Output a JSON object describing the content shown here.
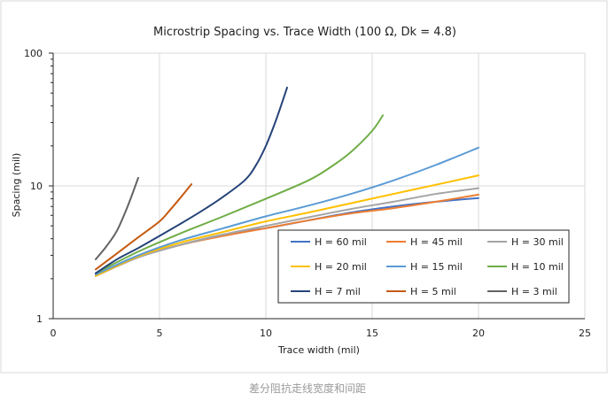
{
  "caption": "差分阻抗走线宽度和间距",
  "chart_data": {
    "type": "line",
    "title": "Microstrip Spacing vs. Trace Width (100 Ω, Dk = 4.8)",
    "xlabel": "Trace width (mil)",
    "ylabel": "Spacing (mil)",
    "xlim": [
      0,
      25
    ],
    "ylim": [
      1,
      100
    ],
    "y_scale": "log",
    "x_ticks": [
      "0",
      "5",
      "10",
      "15",
      "20",
      "25"
    ],
    "y_ticks": [
      "1",
      "10",
      "100"
    ],
    "grid": true,
    "legend_position": "inside-bottom-right",
    "series": [
      {
        "name": "H = 60 mil",
        "color": "#4472c4",
        "x": [
          2,
          4,
          6,
          8,
          10,
          12,
          14,
          16,
          18,
          20
        ],
        "y": [
          2.1,
          2.9,
          3.6,
          4.3,
          4.8,
          5.5,
          6.3,
          7.0,
          7.6,
          8.1
        ]
      },
      {
        "name": "H = 45 mil",
        "color": "#ed7d31",
        "x": [
          2,
          4,
          6,
          8,
          10,
          12,
          14,
          16,
          18,
          20
        ],
        "y": [
          2.1,
          2.9,
          3.6,
          4.2,
          4.8,
          5.5,
          6.2,
          6.8,
          7.6,
          8.6
        ]
      },
      {
        "name": "H = 30 mil",
        "color": "#a5a5a5",
        "x": [
          2,
          4,
          6,
          8,
          10,
          12,
          14,
          16,
          18,
          20
        ],
        "y": [
          2.1,
          2.9,
          3.6,
          4.3,
          5.0,
          5.8,
          6.7,
          7.6,
          8.7,
          9.6
        ]
      },
      {
        "name": "H = 20 mil",
        "color": "#ffc000",
        "x": [
          2,
          4,
          6,
          8,
          10,
          12,
          14,
          16,
          18,
          20
        ],
        "y": [
          2.1,
          2.95,
          3.75,
          4.5,
          5.4,
          6.3,
          7.4,
          8.7,
          10.2,
          12.0
        ]
      },
      {
        "name": "H = 15 mil",
        "color": "#5b9bd5",
        "x": [
          2,
          4,
          6,
          8,
          10,
          12,
          14,
          16,
          18,
          20
        ],
        "y": [
          2.15,
          3.0,
          3.9,
          4.8,
          5.9,
          7.1,
          8.7,
          11.0,
          14.4,
          19.4
        ]
      },
      {
        "name": "H = 10 mil",
        "color": "#70ad47",
        "x": [
          2,
          4,
          6,
          8,
          10,
          12,
          13,
          14,
          15,
          15.5
        ],
        "y": [
          2.2,
          3.2,
          4.4,
          5.9,
          8.0,
          11.0,
          13.7,
          18.0,
          26.0,
          34.0
        ]
      },
      {
        "name": "H = 7 mil",
        "color": "#264478",
        "x": [
          2,
          3,
          4,
          5,
          6,
          7,
          8,
          9,
          9.5,
          10,
          10.5,
          11
        ],
        "y": [
          2.2,
          2.8,
          3.4,
          4.2,
          5.2,
          6.5,
          8.3,
          11.0,
          14.0,
          20.0,
          32.0,
          55.0
        ]
      },
      {
        "name": "H = 5 mil",
        "color": "#c55a11",
        "x": [
          2,
          3,
          4,
          5,
          5.5,
          6,
          6.5
        ],
        "y": [
          2.35,
          3.1,
          4.1,
          5.4,
          6.6,
          8.2,
          10.3
        ]
      },
      {
        "name": "H = 3 mil",
        "color": "#636363",
        "x": [
          2,
          2.5,
          3,
          3.5,
          4
        ],
        "y": [
          2.8,
          3.5,
          4.6,
          7.0,
          11.5
        ]
      }
    ]
  }
}
